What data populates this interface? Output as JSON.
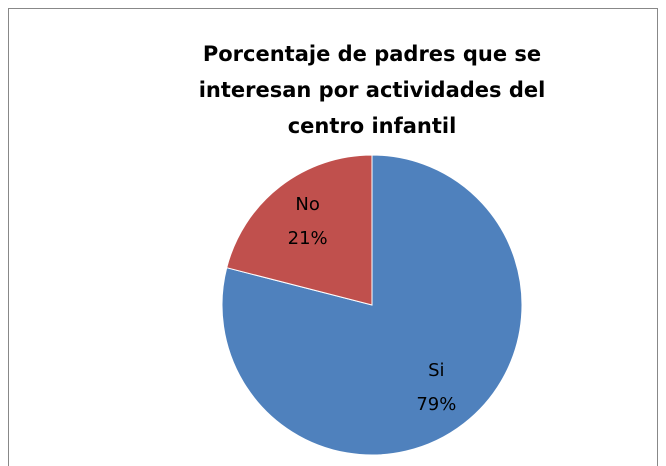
{
  "chart_data": {
    "type": "pie",
    "title": "Porcentaje de padres que se interesan por actividades  del centro infantil",
    "categories": [
      "Si",
      "No"
    ],
    "values": [
      79,
      21
    ],
    "value_labels": [
      "79%",
      "21%"
    ],
    "colors": [
      "#4f81bd",
      "#c0504d"
    ]
  }
}
